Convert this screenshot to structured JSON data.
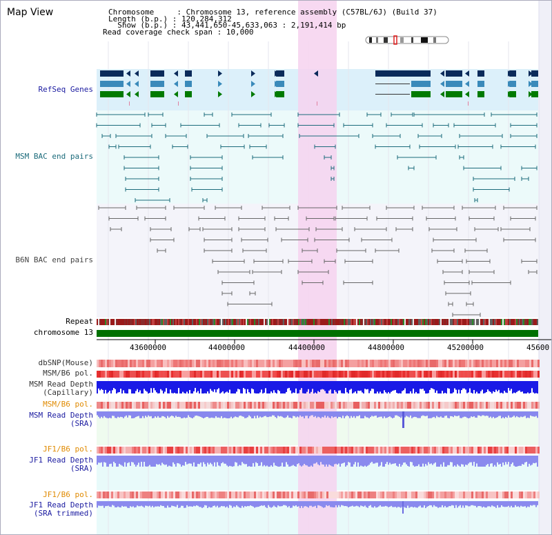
{
  "header": {
    "title": "Map View",
    "chromosome": "Chromosome     : Chromosome 13, reference assembly (C57BL/6J) (Build 37)",
    "length": "Length (b.p.) : 120,284,312",
    "show": "  Show (b.p.) : 43,441,650-45,633,063 : 2,191,414 bp",
    "coverage": "Read coverage check span : 10,000"
  },
  "tracks": {
    "refseq": "RefSeq Genes",
    "msm_bac": "MSM BAC end pairs",
    "b6n_bac": "B6N BAC end pairs",
    "repeat": "Repeat",
    "chromosome": "chromosome 13",
    "dbsnp": "dbSNP(Mouse)",
    "msm_b6_pol": "MSM/B6 pol.",
    "msm_read_depth_cap_1": "MSM Read Depth",
    "msm_read_depth_cap_2": "(Capillary)",
    "msm_b6_pol_2": "MSM/B6 pol.",
    "msm_read_depth_sra_1": "MSM Read Depth",
    "msm_read_depth_sra_2": "(SRA)",
    "jf1_b6_pol": "JF1/B6 pol.",
    "jf1_read_depth_sra_1": "JF1 Read Depth",
    "jf1_read_depth_sra_2": "(SRA)",
    "jf1_b6_pol_2": "JF1/B6 pol.",
    "jf1_read_depth_trim_1": "JF1 Read Depth",
    "jf1_read_depth_trim_2": "(SRA trimmed)"
  },
  "axis": {
    "ticks": [
      "43600000",
      "44000000",
      "44400000",
      "44800000",
      "45200000",
      "45600"
    ]
  },
  "colors": {
    "refseq_dark": "#0a2a5a",
    "refseq_mid": "#3a8aba",
    "refseq_green": "#007a00",
    "msm_line": "#1a6a7a",
    "b6n_line": "#666666",
    "highlight": "#f6d2ee",
    "polymorphism_red": "#e84040",
    "depth_blue": "#1a1ae0",
    "depth_light": "#8888ee"
  }
}
